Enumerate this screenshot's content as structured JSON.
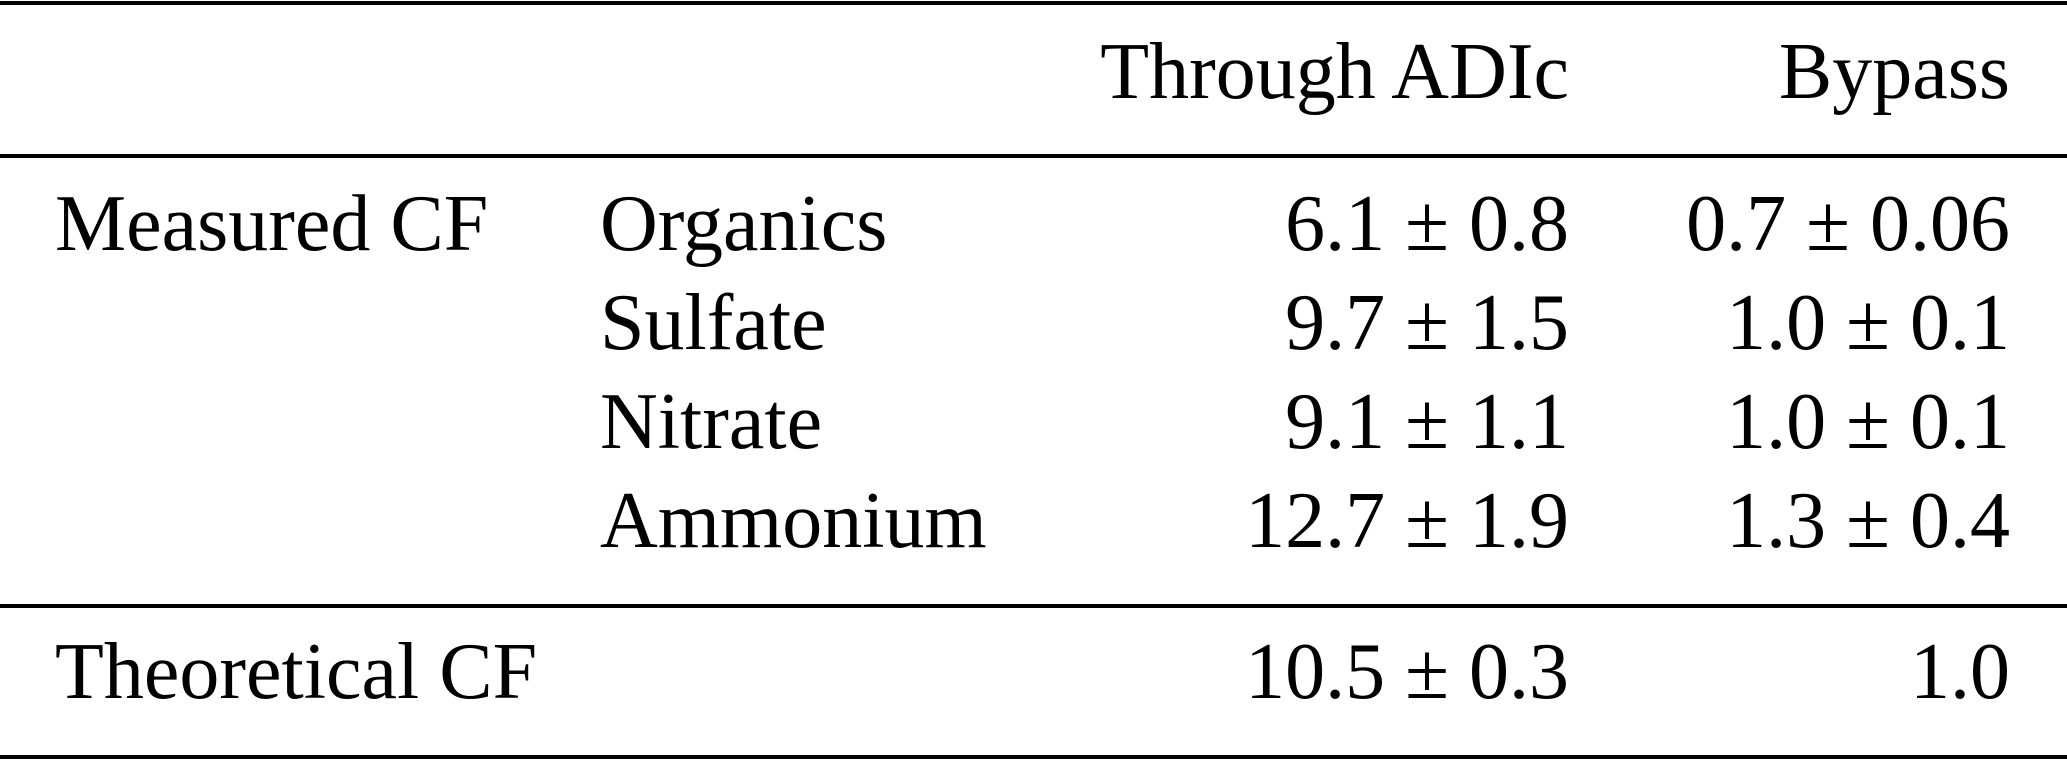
{
  "table": {
    "columns": [
      "Through ADIc",
      "Bypass"
    ],
    "groups": [
      {
        "label": "Measured CF",
        "rows": [
          {
            "label": "Organics",
            "values": [
              "6.1 ± 0.8",
              "0.7 ± 0.06"
            ]
          },
          {
            "label": "Sulfate",
            "values": [
              "9.7 ± 1.5",
              "1.0 ± 0.1"
            ]
          },
          {
            "label": "Nitrate",
            "values": [
              "9.1 ± 1.1",
              "1.0 ± 0.1"
            ]
          },
          {
            "label": "Ammonium",
            "values": [
              "12.7 ± 1.9",
              "1.3 ± 0.4"
            ]
          }
        ]
      },
      {
        "label": "Theoretical CF",
        "values": [
          "10.5 ± 0.3",
          "1.0"
        ]
      }
    ]
  }
}
